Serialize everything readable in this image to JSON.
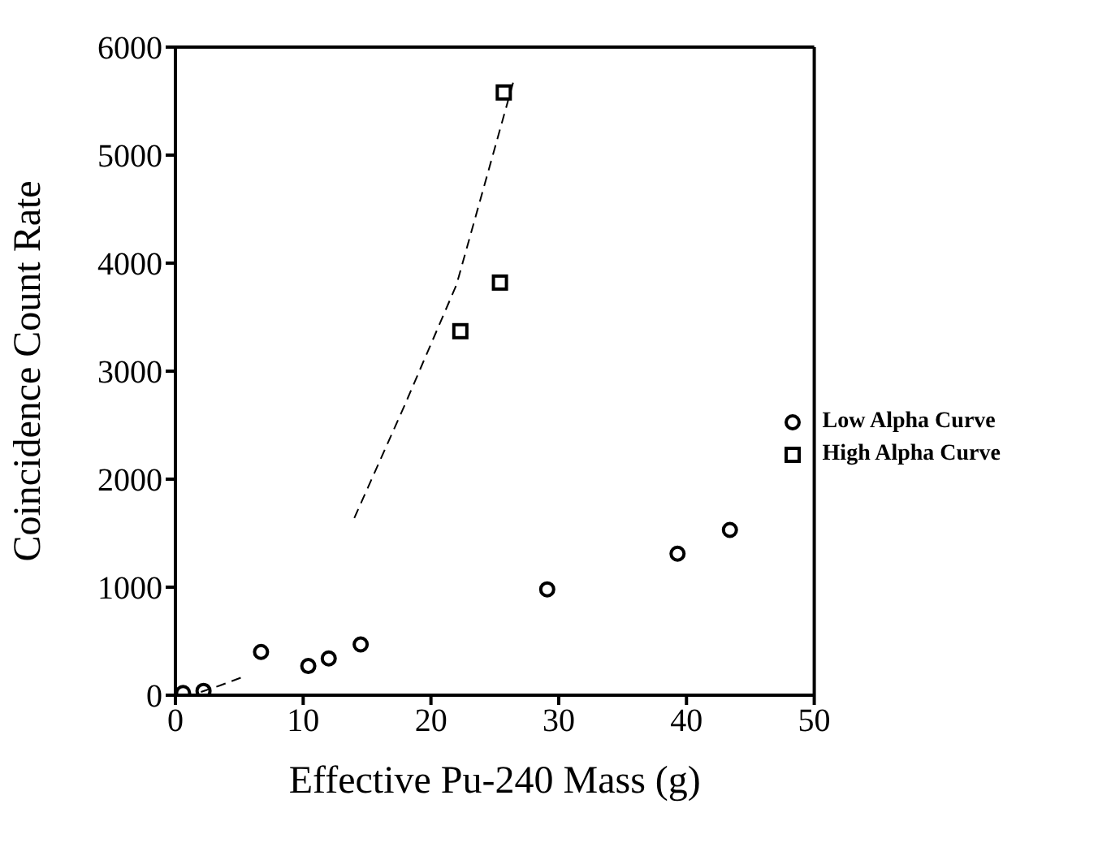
{
  "chart_data": {
    "type": "scatter",
    "xlabel": "Effective Pu-240 Mass (g)",
    "ylabel": "Coincidence Count Rate",
    "xlim": [
      0,
      50
    ],
    "ylim": [
      0,
      6000
    ],
    "xticks": [
      0,
      10,
      20,
      30,
      40,
      50
    ],
    "yticks": [
      0,
      1000,
      2000,
      3000,
      4000,
      5000,
      6000
    ],
    "legend": "right",
    "series": [
      {
        "name": "Low Alpha Curve",
        "color": "#000000",
        "marker": "circle",
        "x": [
          0.6,
          2.2,
          6.7,
          10.4,
          12,
          14.5,
          29.1,
          39.3,
          43.4
        ],
        "values": [
          20,
          40,
          400,
          270,
          340,
          470,
          980,
          1310,
          1530
        ]
      },
      {
        "name": "High Alpha Curve",
        "color": "#000000",
        "marker": "square",
        "x": [
          22.3,
          25.4,
          25.7
        ],
        "values": [
          3370,
          3820,
          5580
        ]
      },
      {
        "type": "line",
        "color": "#000000",
        "marker": "none",
        "line_style": "dashed",
        "x": [
          14,
          18,
          22,
          26.5
        ],
        "values": [
          1640,
          2700,
          3800,
          5700
        ]
      },
      {
        "type": "line",
        "color": "#000000",
        "marker": "none",
        "line_style": "dashed",
        "x": [
          2,
          3.5,
          5.3
        ],
        "values": [
          30,
          90,
          170
        ]
      }
    ]
  }
}
